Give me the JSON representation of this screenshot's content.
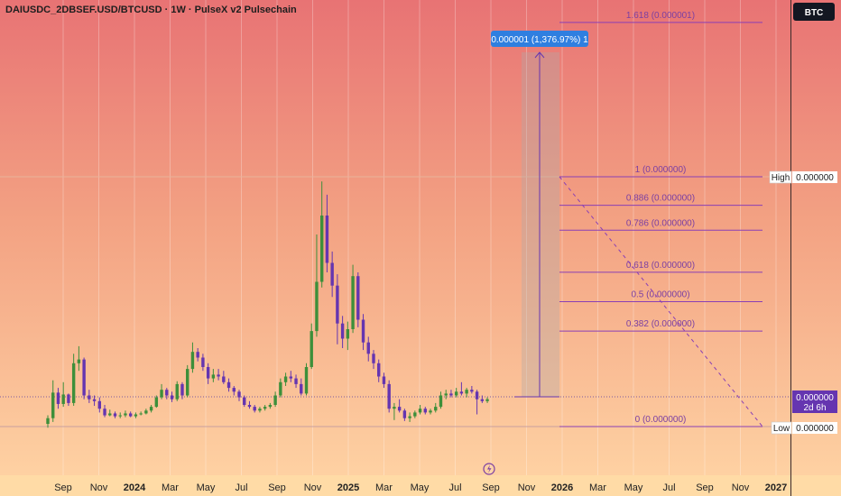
{
  "header": {
    "title": "DAIUSDC_2DBSEF.USD/BTCUSD · 1W · PulseX v2 Pulsechain",
    "currency_button": "BTC"
  },
  "chart_data": {
    "type": "candlestick",
    "title": "DAIUSDC_2DBSEF.USD/BTCUSD · 1W · PulseX v2 Pulsechain",
    "x_ticks": [
      {
        "label": "Sep",
        "bold": false
      },
      {
        "label": "Nov",
        "bold": false
      },
      {
        "label": "2024",
        "bold": true
      },
      {
        "label": "Mar",
        "bold": false
      },
      {
        "label": "May",
        "bold": false
      },
      {
        "label": "Jul",
        "bold": false
      },
      {
        "label": "Sep",
        "bold": false
      },
      {
        "label": "Nov",
        "bold": false
      },
      {
        "label": "2025",
        "bold": true
      },
      {
        "label": "Mar",
        "bold": false
      },
      {
        "label": "May",
        "bold": false
      },
      {
        "label": "Jul",
        "bold": false
      },
      {
        "label": "Sep",
        "bold": false
      },
      {
        "label": "Nov",
        "bold": false
      },
      {
        "label": "2026",
        "bold": true
      },
      {
        "label": "Mar",
        "bold": false
      },
      {
        "label": "May",
        "bold": false
      },
      {
        "label": "Jul",
        "bold": false
      },
      {
        "label": "Sep",
        "bold": false
      },
      {
        "label": "Nov",
        "bold": false
      },
      {
        "label": "2027",
        "bold": true
      }
    ],
    "price_labels": {
      "high_tag": "High",
      "high_value": "0.000000",
      "last_value": "0.000000",
      "countdown": "2d 6h",
      "low_tag": "Low",
      "low_value": "0.000000"
    },
    "projection_label": "0.000001 (1,376.97%) 1",
    "fib_levels": [
      {
        "label": "1.618 (0.000001)",
        "level": 1.618
      },
      {
        "label": "1 (0.000000)",
        "level": 1
      },
      {
        "label": "0.886 (0.000000)",
        "level": 0.886
      },
      {
        "label": "0.786 (0.000000)",
        "level": 0.786
      },
      {
        "label": "0.618 (0.000000)",
        "level": 0.618
      },
      {
        "label": "0.5 (0.000000)",
        "level": 0.5
      },
      {
        "label": "0.382 (0.000000)",
        "level": 0.382
      },
      {
        "label": "0 (0.000000)",
        "level": 0
      }
    ],
    "candles": [
      {
        "o": 0.0,
        "h": 0.9,
        "l": -0.4,
        "c": 0.6
      },
      {
        "o": 0.6,
        "h": 4.6,
        "l": 0.2,
        "c": 3.3
      },
      {
        "o": 3.3,
        "h": 3.8,
        "l": 1.6,
        "c": 2.1
      },
      {
        "o": 2.1,
        "h": 4.4,
        "l": 1.8,
        "c": 3.1
      },
      {
        "o": 3.1,
        "h": 3.2,
        "l": 1.9,
        "c": 2.2
      },
      {
        "o": 2.2,
        "h": 7.4,
        "l": 1.9,
        "c": 6.4
      },
      {
        "o": 6.4,
        "h": 8.2,
        "l": 5.6,
        "c": 6.8
      },
      {
        "o": 6.8,
        "h": 7.0,
        "l": 2.6,
        "c": 3.0
      },
      {
        "o": 3.0,
        "h": 3.6,
        "l": 2.2,
        "c": 2.6
      },
      {
        "o": 2.6,
        "h": 3.0,
        "l": 1.9,
        "c": 2.4
      },
      {
        "o": 2.4,
        "h": 2.8,
        "l": 1.2,
        "c": 1.6
      },
      {
        "o": 1.6,
        "h": 2.0,
        "l": 0.7,
        "c": 0.9
      },
      {
        "o": 0.9,
        "h": 1.5,
        "l": 0.8,
        "c": 1.1
      },
      {
        "o": 1.1,
        "h": 1.3,
        "l": 0.6,
        "c": 0.8
      },
      {
        "o": 0.8,
        "h": 1.2,
        "l": 0.6,
        "c": 0.9
      },
      {
        "o": 0.9,
        "h": 1.4,
        "l": 0.7,
        "c": 1.1
      },
      {
        "o": 1.1,
        "h": 1.3,
        "l": 0.7,
        "c": 0.8
      },
      {
        "o": 0.8,
        "h": 1.2,
        "l": 0.6,
        "c": 1.0
      },
      {
        "o": 1.0,
        "h": 1.3,
        "l": 0.9,
        "c": 1.1
      },
      {
        "o": 1.1,
        "h": 1.6,
        "l": 1.0,
        "c": 1.4
      },
      {
        "o": 1.4,
        "h": 2.0,
        "l": 1.2,
        "c": 1.8
      },
      {
        "o": 1.8,
        "h": 3.0,
        "l": 1.7,
        "c": 2.8
      },
      {
        "o": 2.8,
        "h": 4.2,
        "l": 2.6,
        "c": 3.6
      },
      {
        "o": 3.6,
        "h": 3.8,
        "l": 2.6,
        "c": 3.0
      },
      {
        "o": 3.0,
        "h": 3.4,
        "l": 2.3,
        "c": 2.6
      },
      {
        "o": 2.6,
        "h": 4.5,
        "l": 2.4,
        "c": 4.2
      },
      {
        "o": 4.2,
        "h": 4.4,
        "l": 2.6,
        "c": 3.0
      },
      {
        "o": 3.0,
        "h": 6.2,
        "l": 2.8,
        "c": 5.8
      },
      {
        "o": 5.8,
        "h": 8.6,
        "l": 5.4,
        "c": 7.6
      },
      {
        "o": 7.6,
        "h": 8.0,
        "l": 6.6,
        "c": 7.0
      },
      {
        "o": 7.0,
        "h": 7.4,
        "l": 5.6,
        "c": 6.0
      },
      {
        "o": 6.0,
        "h": 6.4,
        "l": 4.2,
        "c": 4.8
      },
      {
        "o": 4.8,
        "h": 5.8,
        "l": 4.4,
        "c": 5.2
      },
      {
        "o": 5.2,
        "h": 5.8,
        "l": 4.6,
        "c": 5.0
      },
      {
        "o": 5.0,
        "h": 5.6,
        "l": 4.2,
        "c": 4.4
      },
      {
        "o": 4.4,
        "h": 4.8,
        "l": 3.4,
        "c": 3.8
      },
      {
        "o": 3.8,
        "h": 4.0,
        "l": 3.0,
        "c": 3.4
      },
      {
        "o": 3.4,
        "h": 3.6,
        "l": 2.4,
        "c": 2.8
      },
      {
        "o": 2.8,
        "h": 3.0,
        "l": 1.8,
        "c": 2.0
      },
      {
        "o": 2.0,
        "h": 2.4,
        "l": 1.6,
        "c": 1.8
      },
      {
        "o": 1.8,
        "h": 2.0,
        "l": 1.2,
        "c": 1.4
      },
      {
        "o": 1.4,
        "h": 1.8,
        "l": 1.2,
        "c": 1.6
      },
      {
        "o": 1.6,
        "h": 2.0,
        "l": 1.4,
        "c": 1.8
      },
      {
        "o": 1.8,
        "h": 2.2,
        "l": 1.6,
        "c": 2.0
      },
      {
        "o": 2.0,
        "h": 3.4,
        "l": 1.8,
        "c": 3.0
      },
      {
        "o": 3.0,
        "h": 4.8,
        "l": 2.8,
        "c": 4.4
      },
      {
        "o": 4.4,
        "h": 5.4,
        "l": 4.0,
        "c": 5.0
      },
      {
        "o": 5.0,
        "h": 5.6,
        "l": 4.4,
        "c": 4.8
      },
      {
        "o": 4.8,
        "h": 5.2,
        "l": 3.8,
        "c": 4.2
      },
      {
        "o": 4.2,
        "h": 4.8,
        "l": 3.0,
        "c": 3.2
      },
      {
        "o": 3.2,
        "h": 6.4,
        "l": 3.0,
        "c": 6.0
      },
      {
        "o": 6.0,
        "h": 10.6,
        "l": 5.8,
        "c": 9.8
      },
      {
        "o": 9.8,
        "h": 20.0,
        "l": 9.2,
        "c": 15.0
      },
      {
        "o": 15.0,
        "h": 25.6,
        "l": 14.4,
        "c": 22.0
      },
      {
        "o": 22.0,
        "h": 24.2,
        "l": 16.0,
        "c": 17.0
      },
      {
        "o": 17.0,
        "h": 18.2,
        "l": 13.4,
        "c": 14.6
      },
      {
        "o": 14.6,
        "h": 15.8,
        "l": 8.4,
        "c": 10.6
      },
      {
        "o": 10.6,
        "h": 11.4,
        "l": 8.0,
        "c": 9.0
      },
      {
        "o": 9.0,
        "h": 10.8,
        "l": 7.8,
        "c": 10.0
      },
      {
        "o": 10.0,
        "h": 16.8,
        "l": 9.6,
        "c": 15.6
      },
      {
        "o": 15.6,
        "h": 16.0,
        "l": 10.2,
        "c": 11.0
      },
      {
        "o": 11.0,
        "h": 11.6,
        "l": 7.8,
        "c": 8.6
      },
      {
        "o": 8.6,
        "h": 9.2,
        "l": 6.6,
        "c": 7.4
      },
      {
        "o": 7.4,
        "h": 7.8,
        "l": 5.8,
        "c": 6.4
      },
      {
        "o": 6.4,
        "h": 6.8,
        "l": 4.4,
        "c": 5.0
      },
      {
        "o": 5.0,
        "h": 5.4,
        "l": 3.8,
        "c": 4.2
      },
      {
        "o": 4.2,
        "h": 4.6,
        "l": 1.2,
        "c": 1.6
      },
      {
        "o": 1.6,
        "h": 2.2,
        "l": 0.4,
        "c": 1.8
      },
      {
        "o": 1.8,
        "h": 2.6,
        "l": 1.2,
        "c": 1.4
      },
      {
        "o": 1.4,
        "h": 1.6,
        "l": 0.3,
        "c": 0.6
      },
      {
        "o": 0.6,
        "h": 1.2,
        "l": 0.2,
        "c": 0.8
      },
      {
        "o": 0.8,
        "h": 1.4,
        "l": 0.6,
        "c": 1.2
      },
      {
        "o": 1.2,
        "h": 2.0,
        "l": 1.0,
        "c": 1.6
      },
      {
        "o": 1.6,
        "h": 1.8,
        "l": 1.0,
        "c": 1.2
      },
      {
        "o": 1.2,
        "h": 1.6,
        "l": 1.0,
        "c": 1.4
      },
      {
        "o": 1.4,
        "h": 2.2,
        "l": 1.2,
        "c": 1.8
      },
      {
        "o": 1.8,
        "h": 3.4,
        "l": 1.6,
        "c": 3.0
      },
      {
        "o": 3.0,
        "h": 3.6,
        "l": 2.6,
        "c": 3.2
      },
      {
        "o": 3.2,
        "h": 3.6,
        "l": 2.8,
        "c": 3.0
      },
      {
        "o": 3.0,
        "h": 3.8,
        "l": 2.8,
        "c": 3.4
      },
      {
        "o": 3.4,
        "h": 4.4,
        "l": 3.0,
        "c": 3.2
      },
      {
        "o": 3.2,
        "h": 3.8,
        "l": 2.8,
        "c": 3.6
      },
      {
        "o": 3.6,
        "h": 4.0,
        "l": 3.2,
        "c": 3.4
      },
      {
        "o": 3.4,
        "h": 3.6,
        "l": 1.0,
        "c": 2.6
      },
      {
        "o": 2.6,
        "h": 3.0,
        "l": 2.2,
        "c": 2.4
      },
      {
        "o": 2.4,
        "h": 2.8,
        "l": 2.2,
        "c": 2.6
      }
    ]
  },
  "colors": {
    "up": "#3d8f3a",
    "down": "#6535b0",
    "fib_line": "#8a3fb5",
    "accent_blue": "#2f7fe0",
    "axis_bg": "#ffdba6",
    "bg_top": "#e87374",
    "bg_bottom": "#ffd5a5"
  },
  "icons": {
    "event_marker": "lightning-icon"
  }
}
